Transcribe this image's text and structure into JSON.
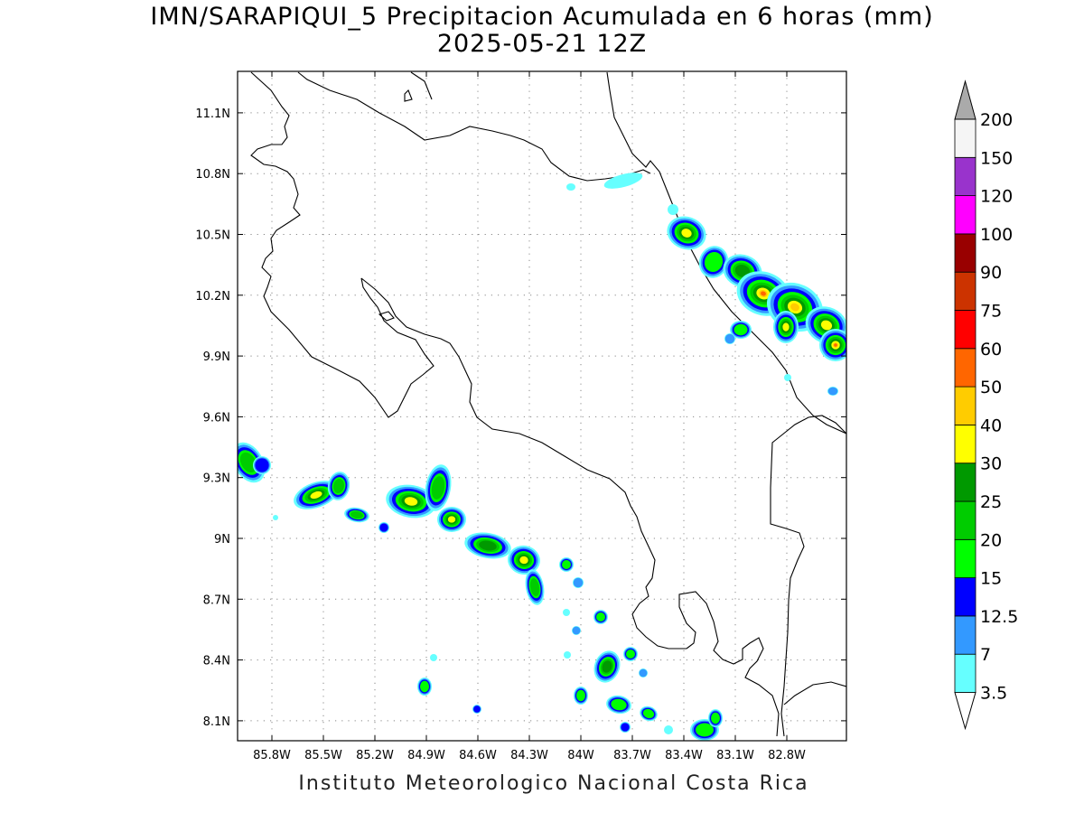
{
  "title": {
    "line1": "IMN/SARAPIQUI_5 Precipitacion Acumulada en 6 horas (mm)",
    "line2": "2025-05-21 12Z"
  },
  "footer": {
    "credit": "Instituto Meteorologico Nacional Costa Rica"
  },
  "map": {
    "lon_range": [
      -86.0,
      -83.0
    ],
    "lat_range": [
      8.0,
      11.3
    ],
    "lat_ticks": [
      {
        "label": "11.1N",
        "value": 11.1
      },
      {
        "label": "10.8N",
        "value": 10.8
      },
      {
        "label": "10.5N",
        "value": 10.5
      },
      {
        "label": "10.2N",
        "value": 10.2
      },
      {
        "label": "9.9N",
        "value": 9.9
      },
      {
        "label": "9.6N",
        "value": 9.6
      },
      {
        "label": "9.3N",
        "value": 9.3
      },
      {
        "label": "9N",
        "value": 9.0
      },
      {
        "label": "8.7N",
        "value": 8.7
      },
      {
        "label": "8.4N",
        "value": 8.4
      },
      {
        "label": "8.1N",
        "value": 8.1
      }
    ],
    "lon_ticks": [
      {
        "label": "85.8W",
        "value": -85.8
      },
      {
        "label": "85.5W",
        "value": -85.5
      },
      {
        "label": "85.2W",
        "value": -85.2
      },
      {
        "label": "84.9W",
        "value": -84.9
      },
      {
        "label": "84.6W",
        "value": -84.6
      },
      {
        "label": "84.3W",
        "value": -84.3
      },
      {
        "label": "84W",
        "value": -84.0
      },
      {
        "label": "83.7W",
        "value": -83.7
      },
      {
        "label": "83.4W",
        "value": -83.4
      },
      {
        "label": "83.1W",
        "value": -83.1
      },
      {
        "label": "82.8W",
        "value": -82.8
      }
    ],
    "grid": true
  },
  "colorbar": {
    "levels": [
      {
        "label": "3.5",
        "color": "#66ffff"
      },
      {
        "label": "7",
        "color": "#3399ff"
      },
      {
        "label": "12.5",
        "color": "#0000ff"
      },
      {
        "label": "15",
        "color": "#00ff00"
      },
      {
        "label": "20",
        "color": "#00cc00"
      },
      {
        "label": "25",
        "color": "#009900"
      },
      {
        "label": "30",
        "color": "#ffff00"
      },
      {
        "label": "40",
        "color": "#ffcc00"
      },
      {
        "label": "50",
        "color": "#ff6600"
      },
      {
        "label": "60",
        "color": "#ff0000"
      },
      {
        "label": "75",
        "color": "#cc3300"
      },
      {
        "label": "90",
        "color": "#990000"
      },
      {
        "label": "100",
        "color": "#ff00ff"
      },
      {
        "label": "120",
        "color": "#9933cc"
      },
      {
        "label": "150",
        "color": "#f5f5f5"
      },
      {
        "label": "200",
        "color": "#aaaaaa"
      }
    ]
  },
  "colors": {
    "coast": "#000000",
    "grid": "#888888",
    "frame": "#000000"
  }
}
